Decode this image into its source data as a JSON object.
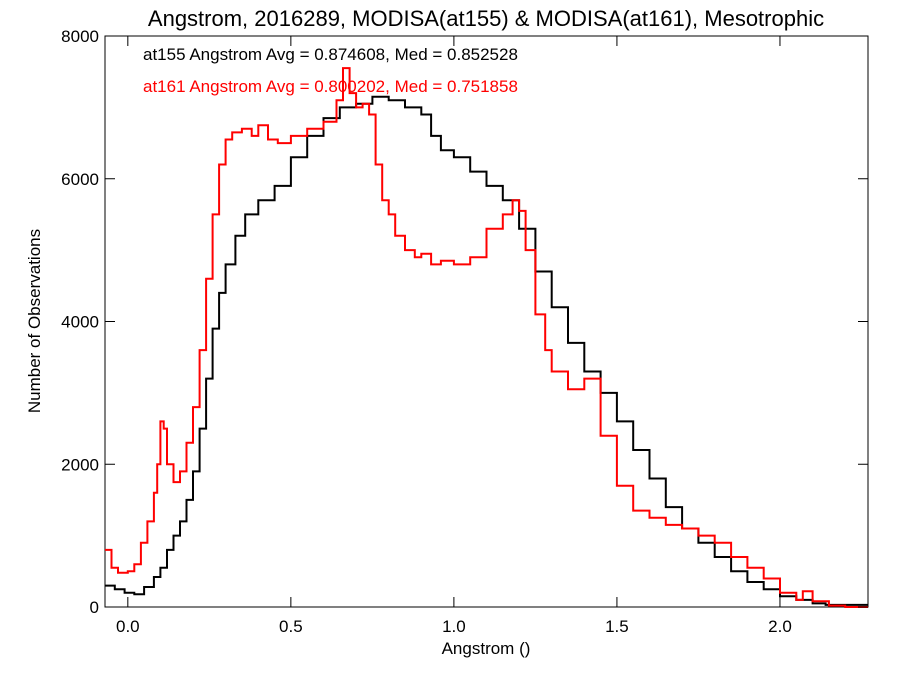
{
  "chart_data": {
    "type": "line",
    "title": "Angstrom, 2016289, MODISA(at155) & MODISA(at161), Mesotrophic",
    "xlabel": "Angstrom ()",
    "ylabel": "Number of Observations",
    "xlim": [
      -0.07,
      2.27
    ],
    "ylim": [
      0,
      8000
    ],
    "x_ticks": [
      0.0,
      0.5,
      1.0,
      1.5,
      2.0
    ],
    "x_tick_labels": [
      "0.0",
      "0.5",
      "1.0",
      "1.5",
      "2.0"
    ],
    "y_ticks": [
      0,
      2000,
      4000,
      6000,
      8000
    ],
    "y_tick_labels": [
      "0",
      "2000",
      "4000",
      "6000",
      "8000"
    ],
    "step": true,
    "grid": false,
    "annotations": [
      {
        "text": "at155 Angstrom Avg = 0.874608, Med = 0.852528",
        "color": "#000000"
      },
      {
        "text": "at161 Angstrom Avg = 0.800202, Med = 0.751858",
        "color": "#ff0000"
      }
    ],
    "series": [
      {
        "color": "#000000",
        "x": [
          -0.07,
          -0.04,
          -0.01,
          0.02,
          0.05,
          0.08,
          0.1,
          0.12,
          0.14,
          0.16,
          0.18,
          0.2,
          0.22,
          0.24,
          0.26,
          0.28,
          0.3,
          0.33,
          0.36,
          0.4,
          0.45,
          0.5,
          0.55,
          0.6,
          0.65,
          0.7,
          0.75,
          0.8,
          0.85,
          0.9,
          0.93,
          0.96,
          1.0,
          1.05,
          1.1,
          1.15,
          1.2,
          1.25,
          1.3,
          1.35,
          1.4,
          1.45,
          1.5,
          1.55,
          1.6,
          1.65,
          1.7,
          1.75,
          1.8,
          1.85,
          1.9,
          1.95,
          2.0,
          2.05,
          2.1,
          2.14
        ],
        "y": [
          300,
          250,
          200,
          180,
          280,
          420,
          550,
          800,
          1000,
          1200,
          1500,
          1900,
          2500,
          3200,
          3900,
          4400,
          4800,
          5200,
          5500,
          5700,
          5900,
          6300,
          6600,
          6850,
          7000,
          7050,
          7150,
          7100,
          7000,
          6900,
          6600,
          6400,
          6300,
          6100,
          5900,
          5700,
          5300,
          4700,
          4200,
          3700,
          3300,
          3000,
          2600,
          2200,
          1800,
          1400,
          1100,
          900,
          700,
          500,
          350,
          250,
          150,
          100,
          50,
          30
        ]
      },
      {
        "color": "#ff0000",
        "x": [
          -0.07,
          -0.05,
          -0.03,
          0.0,
          0.02,
          0.04,
          0.06,
          0.08,
          0.09,
          0.1,
          0.11,
          0.12,
          0.14,
          0.16,
          0.18,
          0.2,
          0.22,
          0.24,
          0.26,
          0.28,
          0.3,
          0.32,
          0.35,
          0.38,
          0.4,
          0.43,
          0.46,
          0.5,
          0.55,
          0.6,
          0.64,
          0.66,
          0.68,
          0.7,
          0.72,
          0.74,
          0.76,
          0.78,
          0.8,
          0.82,
          0.85,
          0.88,
          0.9,
          0.93,
          0.96,
          1.0,
          1.05,
          1.1,
          1.15,
          1.18,
          1.2,
          1.22,
          1.25,
          1.28,
          1.3,
          1.35,
          1.4,
          1.45,
          1.5,
          1.55,
          1.6,
          1.65,
          1.7,
          1.75,
          1.8,
          1.85,
          1.9,
          1.95,
          2.0,
          2.05,
          2.07,
          2.1,
          2.15,
          2.2,
          2.27
        ],
        "y": [
          800,
          550,
          480,
          500,
          600,
          900,
          1200,
          1600,
          2000,
          2600,
          2500,
          2000,
          1750,
          1900,
          2300,
          2800,
          3600,
          4600,
          5500,
          6200,
          6550,
          6650,
          6700,
          6600,
          6750,
          6550,
          6500,
          6600,
          6700,
          6800,
          7100,
          7550,
          7200,
          7000,
          7050,
          6900,
          6200,
          5700,
          5500,
          5200,
          5000,
          4900,
          4950,
          4800,
          4850,
          4800,
          4900,
          5300,
          5500,
          5700,
          5550,
          5000,
          4100,
          3600,
          3300,
          3050,
          3200,
          2400,
          1700,
          1350,
          1250,
          1150,
          1100,
          1000,
          900,
          700,
          550,
          400,
          200,
          100,
          220,
          80,
          20,
          0,
          0
        ]
      }
    ]
  }
}
